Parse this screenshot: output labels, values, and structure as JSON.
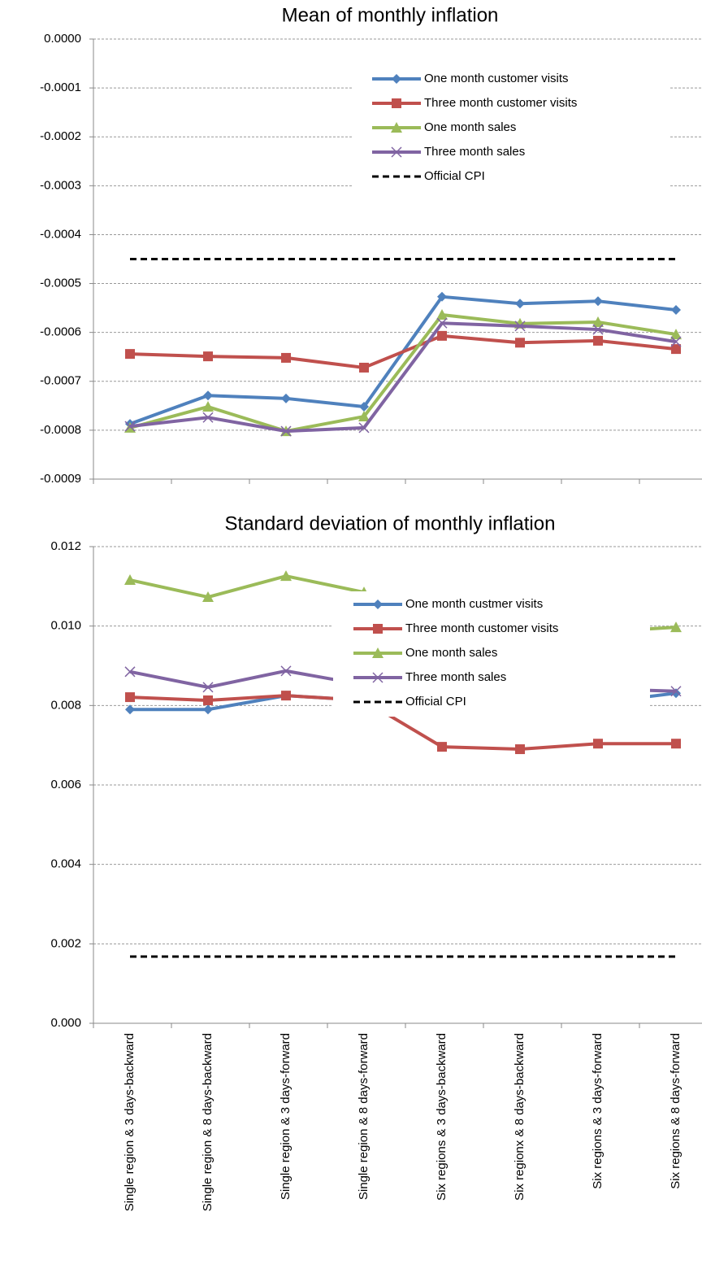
{
  "chart_data": [
    {
      "type": "line",
      "title": "Mean of monthly inflation",
      "ylim": [
        -0.0009,
        0
      ],
      "yticks": [
        {
          "value": 0,
          "label": "0.0000"
        },
        -0.0001,
        -0.0002,
        -0.0003,
        -0.0004,
        -0.0005,
        -0.0006,
        -0.0007,
        -0.0008,
        -0.0009
      ],
      "grid": true,
      "legend": "top-right",
      "series": [
        {
          "name": "One month customer visits",
          "color": "#4f81bd",
          "marker": "diamond",
          "values": [
            -0.000787,
            -0.000729,
            -0.000735,
            -0.000752,
            -0.000527,
            -0.000541,
            -0.000536,
            -0.000554
          ]
        },
        {
          "name": "Three month customer visits",
          "color": "#c0504d",
          "marker": "square",
          "values": [
            -0.000644,
            -0.000649,
            -0.000652,
            -0.000672,
            -0.000607,
            -0.000621,
            -0.000617,
            -0.000634
          ]
        },
        {
          "name": "One month sales",
          "color": "#9bbb59",
          "marker": "triangle",
          "values": [
            -0.000795,
            -0.000752,
            -0.000802,
            -0.000772,
            -0.000564,
            -0.000582,
            -0.000579,
            -0.000604
          ]
        },
        {
          "name": "Three month sales",
          "color": "#8064a2",
          "marker": "x",
          "values": [
            -0.000792,
            -0.000774,
            -0.000802,
            -0.000795,
            -0.000581,
            -0.000587,
            -0.000594,
            -0.000619
          ]
        },
        {
          "name": "Official CPI",
          "color": "#000000",
          "dashed": true,
          "values": [
            -0.00045,
            -0.00045,
            -0.00045,
            -0.00045,
            -0.00045,
            -0.00045,
            -0.00045,
            -0.00045
          ]
        }
      ]
    },
    {
      "type": "line",
      "title": "Standard deviation of monthly inflation",
      "categories": [
        "Single region & 3 days-backward",
        "Single region & 8 days-backward",
        "Single region & 3 days-forward",
        "Single region & 8 days-forward",
        "Six regions & 3 days-backward",
        "Six regionx & 8 days-backward",
        "Six regions & 3 days-forward",
        "Six regions & 8 days-forward"
      ],
      "ylim": [
        0,
        0.012
      ],
      "yticks": [
        {
          "value": 0,
          "label": "0.000"
        },
        0.002,
        0.004,
        0.006,
        0.008,
        {
          "value": 0.01,
          "label": "0.010"
        },
        0.012
      ],
      "grid": true,
      "legend": "center-right",
      "series": [
        {
          "name": "One month custmer visits",
          "color": "#4f81bd",
          "marker": "diamond",
          "values": [
            0.0079,
            0.0079,
            0.00825,
            0.00813,
            0.00799,
            0.00807,
            0.00807,
            0.00831
          ]
        },
        {
          "name": "Three month customer visits",
          "color": "#c0504d",
          "marker": "square",
          "values": [
            0.00821,
            0.00813,
            0.00825,
            0.00813,
            0.00696,
            0.0069,
            0.00704,
            0.00704
          ]
        },
        {
          "name": "One month sales",
          "color": "#9bbb59",
          "marker": "triangle",
          "values": [
            0.01116,
            0.01073,
            0.01126,
            0.01085,
            0.00981,
            0.00985,
            0.00985,
            0.00997
          ]
        },
        {
          "name": "Three month sales",
          "color": "#8064a2",
          "marker": "x",
          "values": [
            0.00885,
            0.00846,
            0.00887,
            0.00852,
            0.00842,
            0.00833,
            0.00842,
            0.00836
          ]
        },
        {
          "name": "Official CPI",
          "color": "#000000",
          "dashed": true,
          "values": [
            0.00168,
            0.00168,
            0.00168,
            0.00168,
            0.00168,
            0.00168,
            0.00168,
            0.00168
          ]
        }
      ]
    }
  ]
}
